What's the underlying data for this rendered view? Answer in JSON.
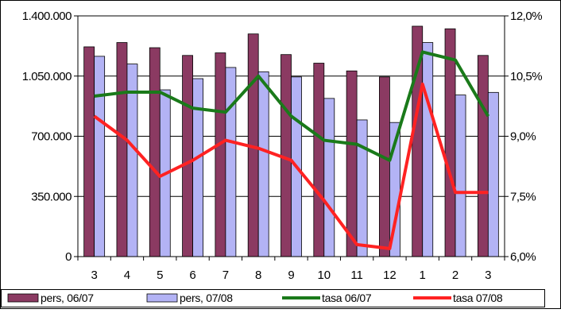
{
  "chart_data": {
    "type": "bar",
    "categories": [
      "3",
      "4",
      "5",
      "6",
      "7",
      "8",
      "9",
      "10",
      "11",
      "12",
      "1",
      "2",
      "3"
    ],
    "y_left": {
      "ylim": [
        0,
        1400000
      ],
      "ticks": [
        "0",
        "350.000",
        "700.000",
        "1.050.000",
        "1.400.000"
      ]
    },
    "y_right": {
      "ylim": [
        6.0,
        12.0
      ],
      "ticks": [
        "6,0%",
        "7,5%",
        "9,0%",
        "10,5%",
        "12,0%"
      ]
    },
    "grid": true,
    "legend_position": "bottom",
    "bar_series": [
      {
        "name": "pers, 06/07",
        "color": "#8b3a62",
        "axis": "left",
        "values": [
          1220000,
          1245000,
          1215000,
          1170000,
          1185000,
          1295000,
          1175000,
          1125000,
          1080000,
          1045000,
          1340000,
          1325000,
          1170000
        ]
      },
      {
        "name": "pers, 07/08",
        "color": "#b3b3f5",
        "axis": "left",
        "values": [
          1165000,
          1120000,
          970000,
          1035000,
          1100000,
          1075000,
          1045000,
          920000,
          795000,
          780000,
          1245000,
          940000,
          955000
        ]
      }
    ],
    "line_series": [
      {
        "name": "tasa 06/07",
        "color": "#1a7a1a",
        "axis": "right",
        "values": [
          10.0,
          10.1,
          10.1,
          9.7,
          9.6,
          10.5,
          9.5,
          8.9,
          8.8,
          8.4,
          11.1,
          10.9,
          9.5
        ]
      },
      {
        "name": "tasa 07/08",
        "color": "#ff2222",
        "axis": "right",
        "values": [
          9.5,
          8.9,
          8.0,
          8.4,
          8.9,
          8.7,
          8.4,
          7.4,
          6.3,
          6.2,
          10.3,
          7.6,
          7.6
        ]
      }
    ]
  }
}
